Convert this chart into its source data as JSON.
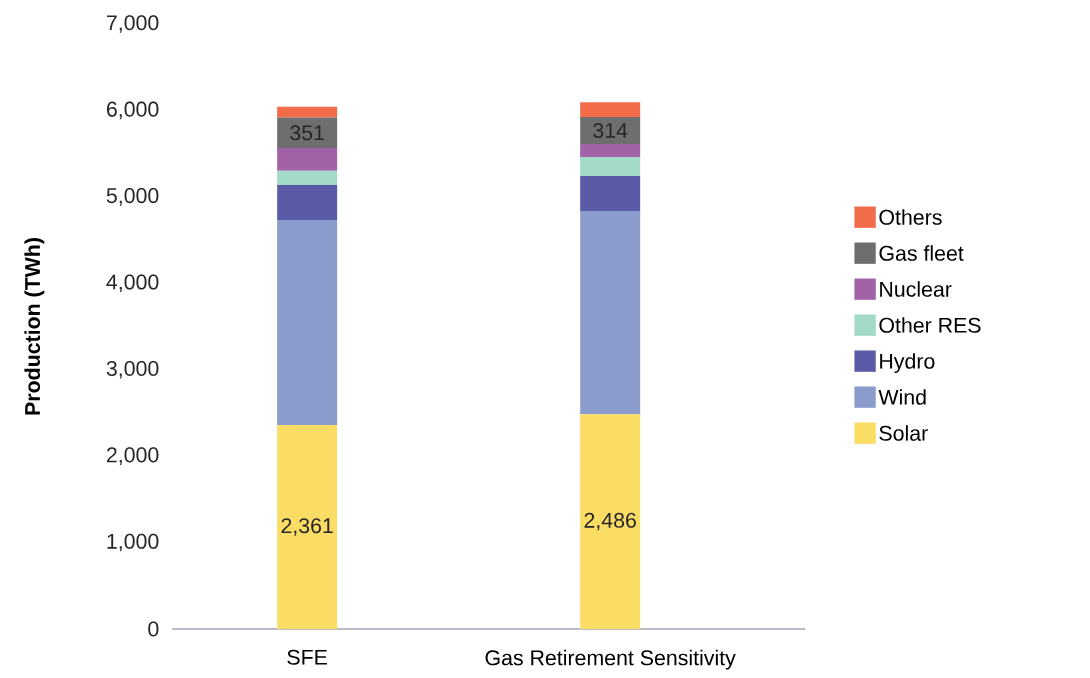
{
  "chart_data": {
    "type": "bar",
    "stacked": true,
    "ylabel": "Production (TWh)",
    "legend": "right",
    "grid": false,
    "categories": [
      "SFE",
      "Gas Retirement Sensitivity"
    ],
    "ylim": [
      0,
      7000
    ],
    "yticks": [
      0,
      {
        "value": 1000,
        "label": "1,000"
      },
      {
        "value": 2000,
        "label": "2,000"
      },
      {
        "value": 3000,
        "label": "3,000"
      },
      {
        "value": 4000,
        "label": "4,000"
      },
      {
        "value": 5000,
        "label": "5,000"
      },
      {
        "value": 6000,
        "label": "6,000"
      },
      {
        "value": 7000,
        "label": "7,000"
      }
    ],
    "series": [
      {
        "name": "Solar",
        "color": "#fbdc64",
        "values": [
          2361,
          2486
        ],
        "value_labels": [
          "2,361",
          "2,486"
        ]
      },
      {
        "name": "Wind",
        "color": "#8a9bcc",
        "values": [
          2370,
          2350
        ]
      },
      {
        "name": "Hydro",
        "color": "#5a5ba8",
        "values": [
          405,
          405
        ]
      },
      {
        "name": "Other RES",
        "color": "#a3d9c7",
        "values": [
          165,
          220
        ]
      },
      {
        "name": "Nuclear",
        "color": "#a262a8",
        "values": [
          265,
          150
        ]
      },
      {
        "name": "Gas fleet",
        "color": "#6e6e6e",
        "values": [
          351,
          314
        ],
        "value_labels": [
          "351",
          "314"
        ]
      },
      {
        "name": "Others",
        "color": "#f26c4a",
        "values": [
          125,
          170
        ]
      }
    ]
  }
}
